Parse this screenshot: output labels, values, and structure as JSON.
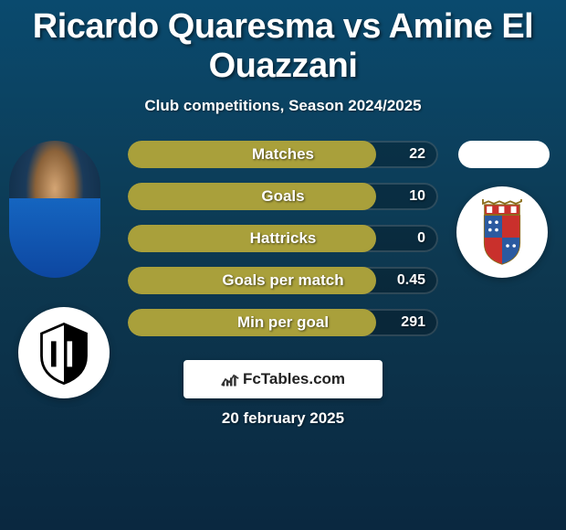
{
  "title": "Ricardo Quaresma vs Amine El Ouazzani",
  "subtitle": "Club competitions, Season 2024/2025",
  "date": "20 february 2025",
  "attribution": {
    "text": "FcTables.com"
  },
  "bar_style": {
    "fill_color": "#a9a03b",
    "bg_color": "rgba(0,0,0,0.25)",
    "border_color": "rgba(255,255,255,0.15)",
    "label_fontsize": 17,
    "value_fontsize": 16,
    "height": 30,
    "radius": 15
  },
  "stats": [
    {
      "label": "Matches",
      "value": "22",
      "fill_pct": 80
    },
    {
      "label": "Goals",
      "value": "10",
      "fill_pct": 80
    },
    {
      "label": "Hattricks",
      "value": "0",
      "fill_pct": 80
    },
    {
      "label": "Goals per match",
      "value": "0.45",
      "fill_pct": 80
    },
    {
      "label": "Min per goal",
      "value": "291",
      "fill_pct": 80
    }
  ],
  "left_player": {
    "name": "Ricardo Quaresma"
  },
  "right_player": {
    "name": "Amine El Ouazzani"
  },
  "colors": {
    "background_top": "#0a4a6e",
    "background_bottom": "#0a2840",
    "text": "#ffffff"
  }
}
